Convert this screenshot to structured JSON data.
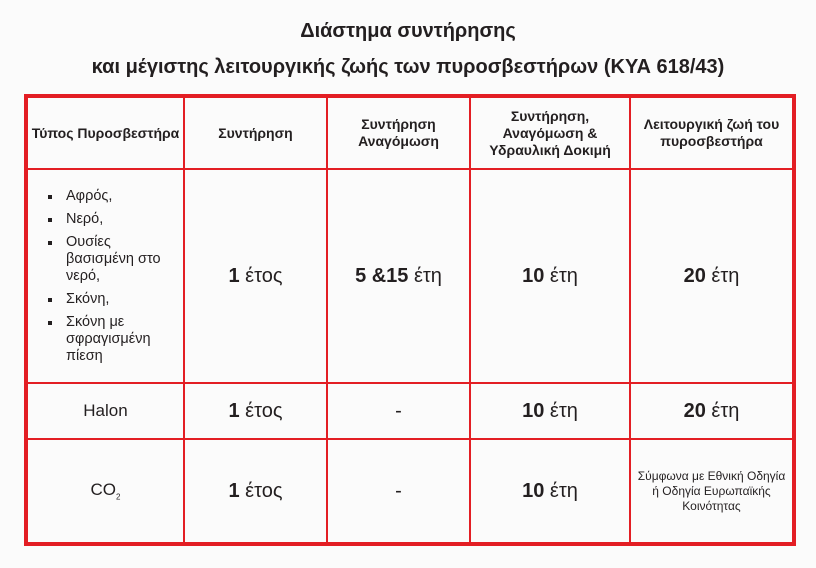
{
  "title_line1": "Διάστημα συντήρησης",
  "title_line2": "και μέγιστης λειτουργικής ζωής των πυροσβεστήρων (ΚΥΑ 618/43)",
  "headers": [
    "Τύπος Πυροσβεστήρα",
    "Συντήρηση",
    "Συντήρηση Αναγόμωση",
    "Συντήρηση, Αναγόμωση & Υδραυλική Δοκιμή",
    "Λειτουργική ζωή του πυροσβεστήρα"
  ],
  "rows": [
    {
      "types": [
        "Αφρός,",
        "Νερό,",
        "Ουσίες βασισμένη στο νερό,",
        "Σκόνη,",
        "Σκόνη με σφραγισμένη πίεση"
      ],
      "maintenance": {
        "num": "1",
        "unit": " έτος"
      },
      "recharge": {
        "num": "5 &15",
        "unit": " έτη"
      },
      "hydro": {
        "num": "10",
        "unit": " έτη"
      },
      "life": {
        "num": "20",
        "unit": " έτη"
      }
    },
    {
      "type": "Halon",
      "maintenance": {
        "num": "1",
        "unit": " έτος"
      },
      "recharge": "-",
      "hydro": {
        "num": "10",
        "unit": " έτη"
      },
      "life": {
        "num": "20",
        "unit": " έτη"
      }
    },
    {
      "type": "CO",
      "type_sub": "2",
      "maintenance": {
        "num": "1",
        "unit": " έτος"
      },
      "recharge": "-",
      "hydro": {
        "num": "10",
        "unit": " έτη"
      },
      "life_text": "Σύμφωνα με Εθνική Οδηγία ή Οδηγία Ευρωπαϊκής Κοινότητας"
    }
  ],
  "border_color": "#e31e24"
}
